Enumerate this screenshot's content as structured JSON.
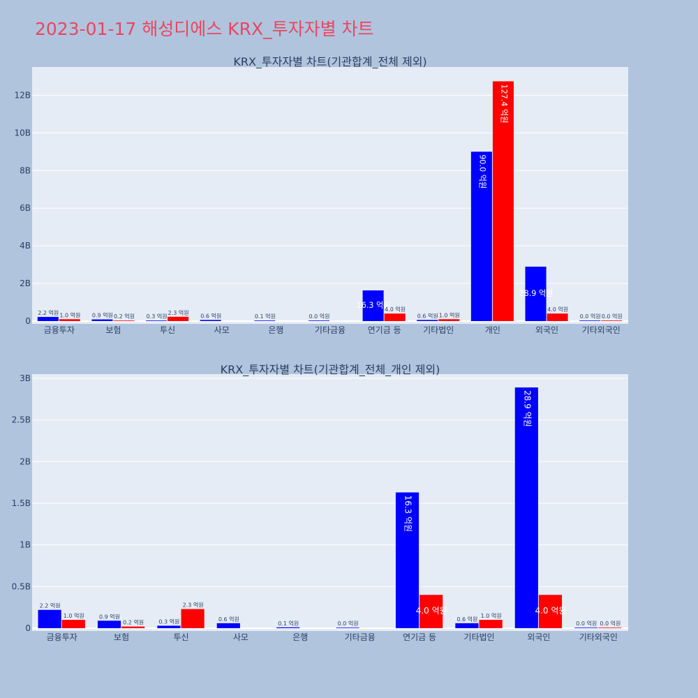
{
  "page_title": "2023-01-17 해성디에스 KRX_투자자별 차트",
  "colors": {
    "buy": "#0000ff",
    "sell": "#ff0000",
    "title": "#e8475f",
    "background": "#b0c4de",
    "plot": "#e5ecf6"
  },
  "chart_data": [
    {
      "type": "bar",
      "title": "KRX_투자자별 차트(기관합계_전체 제외)",
      "categories": [
        "금융투자",
        "보험",
        "투신",
        "사모",
        "은행",
        "기타금융",
        "연기금 등",
        "기타법인",
        "개인",
        "외국인",
        "기타외국인"
      ],
      "series": [
        {
          "color": "#0000ff",
          "values": [
            220000000,
            90000000,
            30000000,
            60000000,
            10000000,
            0,
            1630000000,
            60000000,
            9000000000,
            2890000000,
            0
          ],
          "labels": [
            "2.2 억원",
            "0.9 억원",
            "0.3 억원",
            "0.6 억원",
            "0.1 억원",
            "0.0 억원",
            "16.3 억원",
            "0.6 억원",
            "90.0 억원",
            "28.9 억원",
            "0.0 억원"
          ]
        },
        {
          "color": "#ff0000",
          "values": [
            100000000,
            20000000,
            230000000,
            null,
            null,
            null,
            400000000,
            100000000,
            12740000000,
            400000000,
            0
          ],
          "labels": [
            "1.0 억원",
            "0.2 억원",
            "2.3 억원",
            "",
            "",
            "",
            "4.0 억원",
            "1.0 억원",
            "127.4 억원",
            "4.0 억원",
            "0.0 억원"
          ]
        }
      ],
      "ylim": [
        0,
        13500000000
      ],
      "yticks": [
        0,
        2000000000,
        4000000000,
        6000000000,
        8000000000,
        10000000000,
        12000000000
      ],
      "ytick_labels": [
        "0",
        "2B",
        "4B",
        "6B",
        "8B",
        "10B",
        "12B"
      ],
      "grid": true
    },
    {
      "type": "bar",
      "title": "KRX_투자자별 차트(기관합계_전체_개인 제외)",
      "categories": [
        "금융투자",
        "보험",
        "투신",
        "사모",
        "은행",
        "기타금융",
        "연기금 등",
        "기타법인",
        "외국인",
        "기타외국인"
      ],
      "series": [
        {
          "color": "#0000ff",
          "values": [
            220000000,
            90000000,
            30000000,
            60000000,
            10000000,
            0,
            1630000000,
            60000000,
            2890000000,
            0
          ],
          "labels": [
            "2.2 억원",
            "0.9 억원",
            "0.3 억원",
            "0.6 억원",
            "0.1 억원",
            "0.0 억원",
            "16.3 억원",
            "0.6 억원",
            "28.9 억원",
            "0.0 억원"
          ]
        },
        {
          "color": "#ff0000",
          "values": [
            100000000,
            20000000,
            230000000,
            null,
            null,
            null,
            400000000,
            100000000,
            400000000,
            0
          ],
          "labels": [
            "1.0 억원",
            "0.2 억원",
            "2.3 억원",
            "",
            "",
            "",
            "4.0 억원",
            "1.0 억원",
            "4.0 억원",
            "0.0 억원"
          ]
        }
      ],
      "ylim": [
        0,
        3050000000
      ],
      "yticks": [
        0,
        500000000,
        1000000000,
        1500000000,
        2000000000,
        2500000000,
        3000000000
      ],
      "ytick_labels": [
        "0",
        "0.5B",
        "1B",
        "1.5B",
        "2B",
        "2.5B",
        "3B"
      ],
      "grid": true
    }
  ]
}
